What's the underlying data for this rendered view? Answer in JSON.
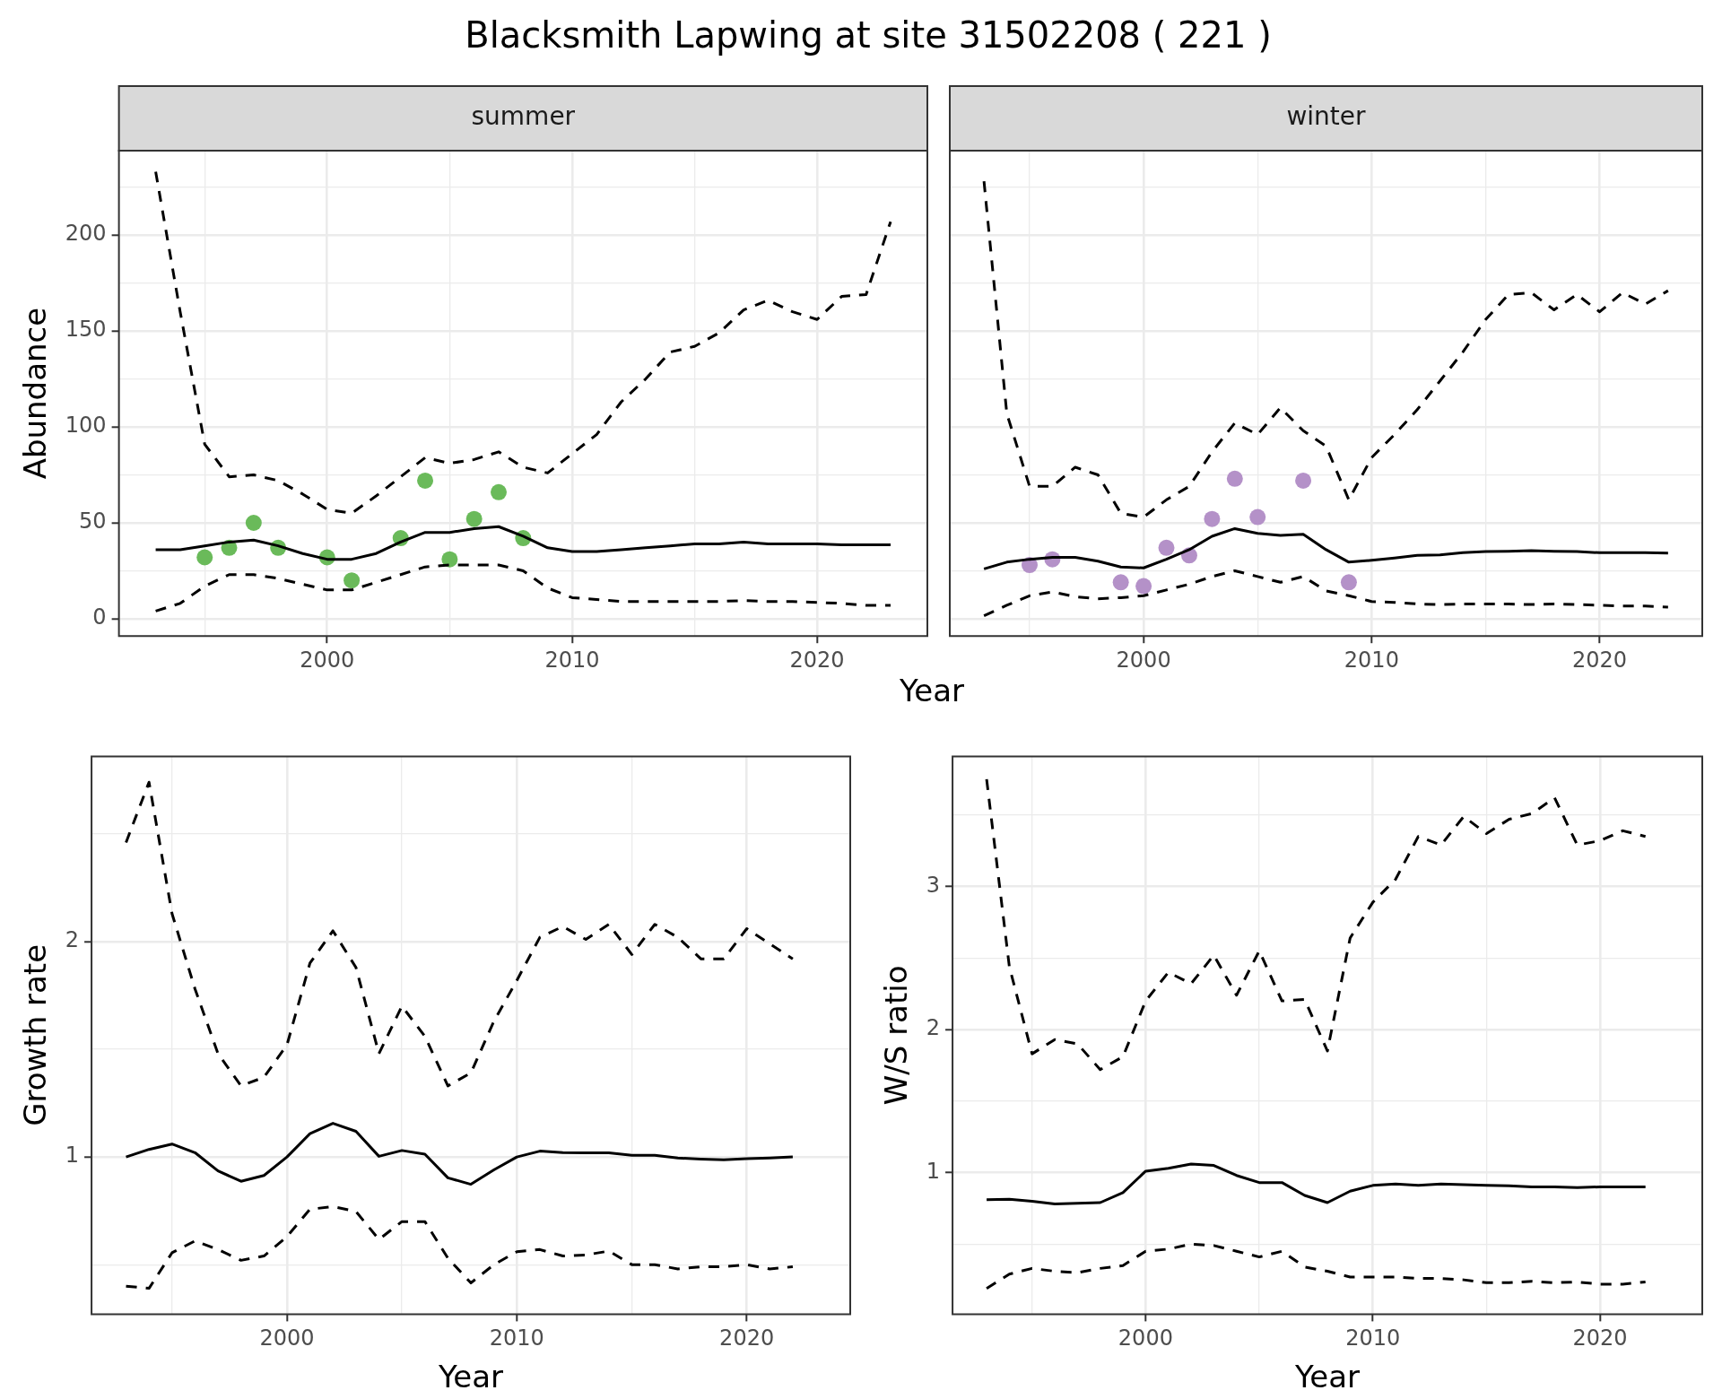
{
  "chart_data": [
    {
      "type": "line",
      "title": "Blacksmith Lapwing at site 31502208 ( 221 )",
      "subtitle": "summer",
      "xlabel": "Year",
      "ylabel": "Abundance",
      "xlim": [
        1991.5,
        2024.5
      ],
      "ylim": [
        -9,
        244
      ],
      "xticks": [
        {
          "value": 1995,
          "label": null
        },
        2000,
        {
          "value": 2005,
          "label": null
        },
        2010,
        {
          "value": 2015,
          "label": null
        },
        2020
      ],
      "yticks": [
        0,
        {
          "value": 25,
          "label": null
        },
        50,
        {
          "value": 75,
          "label": null
        },
        100,
        {
          "value": 125,
          "label": null
        },
        150,
        {
          "value": 175,
          "label": null
        },
        200,
        {
          "value": 225,
          "label": null
        }
      ],
      "grid": true,
      "marker": "none",
      "series": [
        {
          "color": "#000000",
          "line_style": "solid",
          "x": [
            1993,
            1994,
            1995,
            1996,
            1997,
            1998,
            1999,
            2000,
            2001,
            2002,
            2003,
            2004,
            2005,
            2006,
            2007,
            2008,
            2009,
            2010,
            2011,
            2012,
            2013,
            2014,
            2015,
            2016,
            2017,
            2018,
            2019,
            2020,
            2021,
            2022,
            2023
          ],
          "values": [
            36,
            36,
            38,
            40,
            41,
            38,
            34,
            31,
            31,
            34,
            40,
            45,
            45,
            47,
            48,
            43,
            37,
            35,
            35,
            36,
            37,
            38,
            39,
            39,
            40,
            39,
            39,
            39,
            38.5,
            38.5,
            38.5
          ]
        },
        {
          "color": "#000000",
          "line_style": "dashed",
          "x": [
            1993,
            1994,
            1995,
            1996,
            1997,
            1998,
            1999,
            2000,
            2001,
            2002,
            2003,
            2004,
            2005,
            2006,
            2007,
            2008,
            2009,
            2010,
            2011,
            2012,
            2013,
            2014,
            2015,
            2016,
            2017,
            2018,
            2019,
            2020,
            2021,
            2022,
            2023
          ],
          "values": [
            233,
            160,
            91,
            74,
            75,
            72,
            65,
            57,
            55,
            64,
            74,
            84,
            81,
            83,
            87,
            79,
            76,
            86,
            96,
            113,
            125,
            139,
            142,
            149,
            161,
            166,
            160,
            156,
            168,
            169,
            207
          ]
        },
        {
          "color": "#000000",
          "line_style": "dashed",
          "x": [
            1993,
            1994,
            1995,
            1996,
            1997,
            1998,
            1999,
            2000,
            2001,
            2002,
            2003,
            2004,
            2005,
            2006,
            2007,
            2008,
            2009,
            2010,
            2011,
            2012,
            2013,
            2014,
            2015,
            2016,
            2017,
            2018,
            2019,
            2020,
            2021,
            2022,
            2023
          ],
          "values": [
            4,
            8,
            17,
            23,
            23,
            21,
            18,
            15,
            15,
            19,
            23,
            27,
            28,
            28,
            28,
            25,
            16,
            11,
            10,
            9,
            9,
            9,
            9,
            9,
            9.5,
            9,
            9,
            8.5,
            8,
            7,
            7
          ]
        },
        {
          "type": "scatter",
          "color": "#6aba5a",
          "marker": "circle",
          "x": [
            1995,
            1996,
            1997,
            1998,
            2000,
            2001,
            2003,
            2004,
            2005,
            2006,
            2007,
            2008
          ],
          "values": [
            32,
            37,
            50,
            37,
            32,
            20,
            42,
            72,
            31,
            52,
            66,
            42
          ]
        }
      ]
    },
    {
      "type": "line",
      "title": "winter",
      "xlim": [
        1991.5,
        2024.5
      ],
      "ylim": [
        -9,
        244
      ],
      "xticks": [
        {
          "value": 1995,
          "label": null
        },
        2000,
        {
          "value": 2005,
          "label": null
        },
        2010,
        {
          "value": 2015,
          "label": null
        },
        2020
      ],
      "yticks": [
        0,
        {
          "value": 25,
          "label": null
        },
        50,
        {
          "value": 75,
          "label": null
        },
        100,
        {
          "value": 125,
          "label": null
        },
        150,
        {
          "value": 175,
          "label": null
        },
        200,
        {
          "value": 225,
          "label": null
        }
      ],
      "grid": true,
      "tick_labels": "x",
      "marker": "none",
      "series": [
        {
          "color": "#000000",
          "line_style": "solid",
          "x": [
            1993,
            1994,
            1995,
            1996,
            1997,
            1998,
            1999,
            2000,
            2001,
            2002,
            2003,
            2004,
            2005,
            2006,
            2007,
            2008,
            2009,
            2010,
            2011,
            2012,
            2013,
            2014,
            2015,
            2016,
            2017,
            2018,
            2019,
            2020,
            2021,
            2022,
            2023
          ],
          "values": [
            26,
            29.5,
            31,
            32,
            32,
            30,
            27,
            26.5,
            31,
            36,
            43,
            47,
            44.5,
            43.5,
            44,
            36,
            29.5,
            30.5,
            31.7,
            33,
            33.3,
            34.4,
            35,
            35.2,
            35.5,
            35.2,
            35,
            34.4,
            34.4,
            34.4,
            34.2
          ]
        },
        {
          "color": "#000000",
          "line_style": "dashed",
          "x": [
            1993,
            1994,
            1995,
            1996,
            1997,
            1998,
            1999,
            2000,
            2001,
            2002,
            2003,
            2004,
            2005,
            2006,
            2007,
            2008,
            2009,
            2010,
            2011,
            2012,
            2013,
            2014,
            2015,
            2016,
            2017,
            2018,
            2019,
            2020,
            2021,
            2022,
            2023
          ],
          "values": [
            228,
            107,
            69,
            69,
            79,
            75,
            55,
            53,
            62,
            69,
            87,
            102,
            96,
            110,
            98,
            90,
            62,
            84,
            96,
            109,
            124,
            139,
            156,
            169,
            170,
            161,
            169,
            160,
            170,
            164,
            171
          ]
        },
        {
          "color": "#000000",
          "line_style": "dashed",
          "x": [
            1993,
            1994,
            1995,
            1996,
            1997,
            1998,
            1999,
            2000,
            2001,
            2002,
            2003,
            2004,
            2005,
            2006,
            2007,
            2008,
            2009,
            2010,
            2011,
            2012,
            2013,
            2014,
            2015,
            2016,
            2017,
            2018,
            2019,
            2020,
            2021,
            2022,
            2023
          ],
          "values": [
            1.6,
            7,
            12,
            14,
            11.5,
            10.4,
            11,
            12,
            15,
            18,
            22,
            25,
            22,
            19,
            22,
            14.5,
            12,
            9,
            8.5,
            7.7,
            7.4,
            7.7,
            7.7,
            7.7,
            7.4,
            7.7,
            7.4,
            7,
            6.6,
            6.6,
            6
          ]
        },
        {
          "type": "scatter",
          "color": "#b491c8",
          "marker": "circle",
          "x": [
            1995,
            1996,
            1999,
            2000,
            2001,
            2002,
            2003,
            2004,
            2005,
            2007,
            2009
          ],
          "values": [
            28,
            31,
            19,
            17,
            37,
            33,
            52,
            73,
            53,
            72,
            19
          ]
        }
      ]
    },
    {
      "type": "line",
      "xlabel": "Year",
      "ylabel": "Growth rate",
      "xlim": [
        1991.5,
        2024.5
      ],
      "ylim": [
        0.27,
        2.86
      ],
      "xticks": [
        {
          "value": 1995,
          "label": null
        },
        2000,
        {
          "value": 2005,
          "label": null
        },
        2010,
        {
          "value": 2015,
          "label": null
        },
        2020
      ],
      "yticks": [
        {
          "value": 0.5,
          "label": null
        },
        1,
        {
          "value": 1.5,
          "label": null
        },
        2,
        {
          "value": 2.5,
          "label": null
        }
      ],
      "grid": true,
      "marker": "none",
      "series": [
        {
          "color": "#000000",
          "line_style": "solid",
          "x": [
            1993,
            1994,
            1995,
            1996,
            1997,
            1998,
            1999,
            2000,
            2001,
            2002,
            2003,
            2004,
            2005,
            2006,
            2007,
            2008,
            2009,
            2010,
            2011,
            2012,
            2013,
            2014,
            2015,
            2016,
            2017,
            2018,
            2019,
            2020,
            2021,
            2022
          ],
          "values": [
            1.0,
            1.035,
            1.06,
            1.02,
            0.935,
            0.887,
            0.914,
            1.0,
            1.108,
            1.156,
            1.119,
            1.003,
            1.03,
            1.013,
            0.903,
            0.873,
            0.94,
            1.0,
            1.027,
            1.02,
            1.019,
            1.019,
            1.008,
            1.008,
            0.995,
            0.99,
            0.987,
            0.992,
            0.995,
            1.0
          ]
        },
        {
          "color": "#000000",
          "line_style": "dashed",
          "x": [
            1993,
            1994,
            1995,
            1996,
            1997,
            1998,
            1999,
            2000,
            2001,
            2002,
            2003,
            2004,
            2005,
            2006,
            2007,
            2008,
            2009,
            2010,
            2011,
            2012,
            2013,
            2014,
            2015,
            2016,
            2017,
            2018,
            2019,
            2020,
            2021,
            2022
          ],
          "values": [
            2.46,
            2.74,
            2.13,
            1.78,
            1.48,
            1.33,
            1.37,
            1.52,
            1.9,
            2.05,
            1.88,
            1.48,
            1.7,
            1.56,
            1.33,
            1.39,
            1.63,
            1.82,
            2.02,
            2.07,
            2.01,
            2.08,
            1.94,
            2.08,
            2.02,
            1.92,
            1.92,
            2.06,
            1.99,
            1.92
          ]
        },
        {
          "color": "#000000",
          "line_style": "dashed",
          "x": [
            1993,
            1994,
            1995,
            1996,
            1997,
            1998,
            1999,
            2000,
            2001,
            2002,
            2003,
            2004,
            2005,
            2006,
            2007,
            2008,
            2009,
            2010,
            2011,
            2012,
            2013,
            2014,
            2015,
            2016,
            2017,
            2018,
            2019,
            2020,
            2021,
            2022
          ],
          "values": [
            0.4,
            0.39,
            0.555,
            0.61,
            0.57,
            0.52,
            0.54,
            0.63,
            0.757,
            0.77,
            0.747,
            0.617,
            0.7,
            0.7,
            0.53,
            0.415,
            0.5,
            0.56,
            0.57,
            0.54,
            0.545,
            0.563,
            0.5,
            0.5,
            0.48,
            0.49,
            0.49,
            0.5,
            0.48,
            0.49
          ]
        }
      ]
    },
    {
      "type": "line",
      "xlabel": "Year",
      "ylabel": "W/S ratio",
      "xlim": [
        1991.5,
        2024.5
      ],
      "ylim": [
        0.01,
        3.91
      ],
      "xticks": [
        {
          "value": 1995,
          "label": null
        },
        2000,
        {
          "value": 2005,
          "label": null
        },
        2010,
        {
          "value": 2015,
          "label": null
        },
        2020
      ],
      "yticks": [
        {
          "value": 0.5,
          "label": null
        },
        1,
        {
          "value": 1.5,
          "label": null
        },
        2,
        {
          "value": 2.5,
          "label": null
        },
        3,
        {
          "value": 3.5,
          "label": null
        }
      ],
      "grid": true,
      "marker": "none",
      "series": [
        {
          "color": "#000000",
          "line_style": "solid",
          "x": [
            1993,
            1994,
            1995,
            1996,
            1997,
            1998,
            1999,
            2000,
            2001,
            2002,
            2003,
            2004,
            2005,
            2006,
            2007,
            2008,
            2009,
            2010,
            2011,
            2012,
            2013,
            2014,
            2015,
            2016,
            2017,
            2018,
            2019,
            2020,
            2021,
            2022
          ],
          "values": [
            0.81,
            0.813,
            0.8,
            0.78,
            0.785,
            0.79,
            0.86,
            1.01,
            1.03,
            1.06,
            1.05,
            0.98,
            0.93,
            0.93,
            0.84,
            0.79,
            0.87,
            0.91,
            0.92,
            0.91,
            0.92,
            0.915,
            0.91,
            0.907,
            0.9,
            0.9,
            0.895,
            0.9,
            0.9,
            0.9
          ]
        },
        {
          "color": "#000000",
          "line_style": "dashed",
          "x": [
            1993,
            1994,
            1995,
            1996,
            1997,
            1998,
            1999,
            2000,
            2001,
            2002,
            2003,
            2004,
            2005,
            2006,
            2007,
            2008,
            2009,
            2010,
            2011,
            2012,
            2013,
            2014,
            2015,
            2016,
            2017,
            2018,
            2019,
            2020,
            2021,
            2022
          ],
          "values": [
            3.75,
            2.44,
            1.83,
            1.93,
            1.9,
            1.72,
            1.81,
            2.2,
            2.4,
            2.32,
            2.52,
            2.24,
            2.55,
            2.2,
            2.21,
            1.85,
            2.64,
            2.89,
            3.05,
            3.35,
            3.29,
            3.49,
            3.37,
            3.47,
            3.51,
            3.62,
            3.29,
            3.32,
            3.39,
            3.35
          ]
        },
        {
          "color": "#000000",
          "line_style": "dashed",
          "x": [
            1993,
            1994,
            1995,
            1996,
            1997,
            1998,
            1999,
            2000,
            2001,
            2002,
            2003,
            2004,
            2005,
            2006,
            2007,
            2008,
            2009,
            2010,
            2011,
            2012,
            2013,
            2014,
            2015,
            2016,
            2017,
            2018,
            2019,
            2020,
            2021,
            2022
          ],
          "values": [
            0.19,
            0.29,
            0.33,
            0.31,
            0.3,
            0.33,
            0.35,
            0.45,
            0.465,
            0.5,
            0.49,
            0.45,
            0.41,
            0.45,
            0.34,
            0.31,
            0.27,
            0.27,
            0.27,
            0.26,
            0.26,
            0.25,
            0.23,
            0.23,
            0.24,
            0.23,
            0.235,
            0.22,
            0.22,
            0.235
          ]
        }
      ]
    }
  ]
}
